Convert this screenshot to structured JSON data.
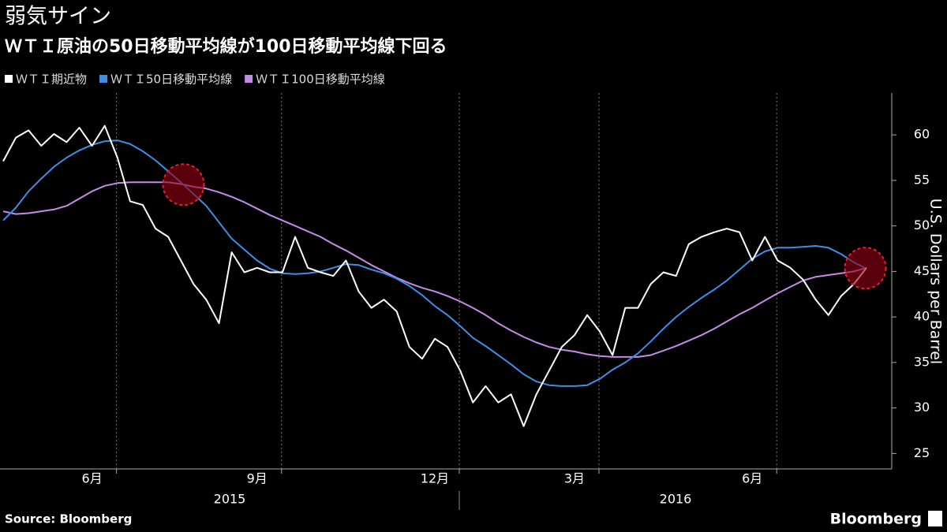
{
  "chart_data": {
    "type": "line",
    "title": "弱気サイン",
    "subtitle": "ＷＴＩ原油の50日移動平均線が100日移動平均線下回る",
    "y_label": "U.S. Dollars per Barrel",
    "source": "Source: Bloomberg",
    "brand": "Bloomberg",
    "categories": [
      null,
      null,
      null,
      null,
      null,
      null,
      null,
      "6月",
      null,
      null,
      null,
      null,
      null,
      null,
      null,
      null,
      null,
      null,
      null,
      null,
      "9月",
      null,
      null,
      null,
      null,
      null,
      null,
      null,
      null,
      null,
      null,
      null,
      null,
      null,
      "12月",
      null,
      null,
      null,
      null,
      null,
      null,
      null,
      null,
      null,
      null,
      "3月",
      null,
      null,
      null,
      null,
      null,
      null,
      null,
      null,
      null,
      null,
      null,
      null,
      null,
      "6月",
      null,
      null,
      null,
      null,
      null,
      null,
      null,
      null,
      null
    ],
    "x_group_labels": [
      "2015",
      "2016"
    ],
    "series": [
      {
        "name": "ＷＴＩ期近物",
        "color": "#ffffff",
        "values": [
          57.1,
          59.7,
          60.5,
          58.8,
          60.1,
          59.2,
          60.8,
          58.8,
          61,
          57.5,
          52.7,
          52.3,
          49.7,
          48.8,
          46.2,
          43.6,
          41.9,
          39.3,
          47.1,
          44.9,
          45.4,
          44.9,
          44.9,
          48.8,
          45.4,
          44.9,
          44.5,
          46.2,
          42.8,
          41.0,
          41.9,
          40.6,
          36.7,
          35.4,
          37.6,
          36.7,
          34.1,
          30.6,
          32.4,
          30.6,
          31.5,
          28.0,
          31.5,
          34.1,
          36.7,
          38.0,
          40.2,
          38.4,
          35.8,
          41.0,
          41.0,
          43.6,
          44.9,
          44.5,
          48.0,
          48.8,
          49.3,
          49.7,
          49.3,
          46.2,
          48.8,
          46.2,
          45.4,
          44.1,
          41.9,
          40.2,
          42.3,
          43.6,
          45.4
        ]
      },
      {
        "name": "ＷＴＩ50日移動平均線",
        "color": "#3d8fe6",
        "values": [
          50.6,
          52,
          53.8,
          55.2,
          56.5,
          57.5,
          58.3,
          58.9,
          59.3,
          59.4,
          59.0,
          58.2,
          57.2,
          56.0,
          54.8,
          53.5,
          52.2,
          50.4,
          48.6,
          47.4,
          46.2,
          45.3,
          44.8,
          44.7,
          44.8,
          45.0,
          45.4,
          45.8,
          45.7,
          45.2,
          44.8,
          44.2,
          43.4,
          42.4,
          41.2,
          40.2,
          39.0,
          37.7,
          36.8,
          35.8,
          34.8,
          33.7,
          32.9,
          32.5,
          32.4,
          32.4,
          32.5,
          33.2,
          34.2,
          35.0,
          36.0,
          37.3,
          38.7,
          40.0,
          41.1,
          42.1,
          43.0,
          44.0,
          45.2,
          46.4,
          47.2,
          47.6,
          47.6,
          47.7,
          47.8,
          47.6,
          46.9,
          46.0,
          45.3
        ]
      },
      {
        "name": "ＷＴＩ100日移動平均線",
        "color": "#c58be8",
        "values": [
          51.6,
          51.3,
          51.4,
          51.6,
          51.8,
          52.2,
          53.0,
          53.8,
          54.4,
          54.7,
          54.8,
          54.8,
          54.8,
          54.8,
          54.6,
          54.3,
          54.1,
          53.7,
          53.2,
          52.6,
          51.9,
          51.2,
          50.6,
          50.0,
          49.4,
          48.8,
          48.0,
          47.3,
          46.5,
          45.7,
          45.0,
          44.3,
          43.7,
          43.2,
          42.8,
          42.3,
          41.7,
          41.0,
          40.2,
          39.3,
          38.5,
          37.8,
          37.2,
          36.7,
          36.4,
          36.2,
          35.9,
          35.7,
          35.6,
          35.6,
          35.6,
          35.8,
          36.3,
          36.8,
          37.4,
          38.0,
          38.7,
          39.5,
          40.3,
          41.0,
          41.8,
          42.6,
          43.3,
          44.0,
          44.4,
          44.6,
          44.8,
          45.0,
          45.4
        ]
      }
    ],
    "ylim": [
      23.3,
      64.6
    ],
    "yticks": [
      25,
      30,
      35,
      40,
      45,
      50,
      55,
      60
    ],
    "highlight_crossings": true
  }
}
